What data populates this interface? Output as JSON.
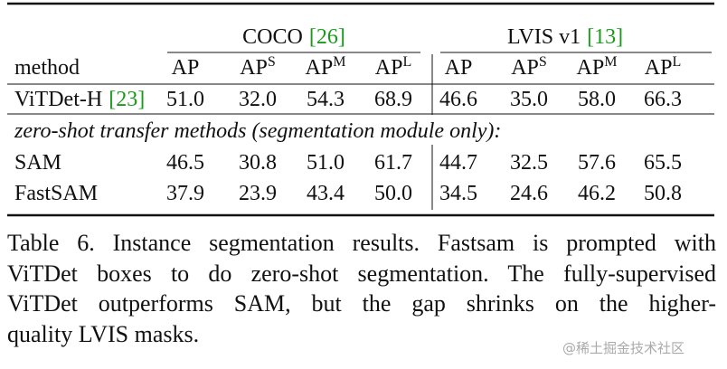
{
  "table": {
    "groups": [
      {
        "name": "COCO",
        "cite": "[26]"
      },
      {
        "name": "LVIS v1",
        "cite": "[13]"
      }
    ],
    "columns": [
      {
        "label": "method"
      },
      {
        "label": "AP"
      },
      {
        "label": "AP",
        "sup": "S"
      },
      {
        "label": "AP",
        "sup": "M"
      },
      {
        "label": "AP",
        "sup": "L"
      },
      {
        "label": "AP"
      },
      {
        "label": "AP",
        "sup": "S"
      },
      {
        "label": "AP",
        "sup": "M"
      },
      {
        "label": "AP",
        "sup": "L"
      }
    ],
    "rows": [
      {
        "method": "ViTDet-H",
        "cite": "[23]",
        "values": [
          "51.0",
          "32.0",
          "54.3",
          "68.9",
          "46.6",
          "35.0",
          "58.0",
          "66.3"
        ]
      },
      {
        "method": "SAM",
        "values": [
          "46.5",
          "30.8",
          "51.0",
          "61.7",
          "44.7",
          "32.5",
          "57.6",
          "65.5"
        ]
      },
      {
        "method": "FastSAM",
        "values": [
          "37.9",
          "23.9",
          "43.4",
          "50.0",
          "34.5",
          "24.6",
          "46.2",
          "50.8"
        ]
      }
    ],
    "section": "zero-shot transfer methods (segmentation module only):"
  },
  "caption_lines": [
    "Table 6. Instance segmentation results. Fastsam is prompted with",
    "ViTDet boxes to do zero-shot segmentation. The fully-supervised",
    "ViTDet outperforms SAM, but the gap shrinks on the higher-",
    "quality LVIS masks."
  ],
  "watermark": "@稀土掘金技术社区"
}
